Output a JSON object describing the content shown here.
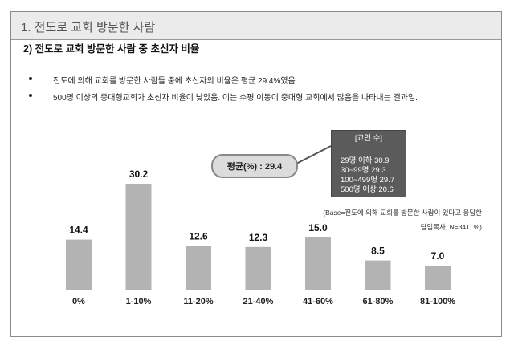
{
  "header": {
    "title": "1. 전도로 교회 방문한 사람"
  },
  "section": {
    "title": "2) 전도로 교회 방문한 사람 중 초신자 비율"
  },
  "bullets": [
    "전도에 의해 교회를 방문한 사람들 중에 초신자의 비율은 평균 29.4%였음.",
    "500명 이상의 중대형교회가 초신자 비율이 낮았음. 이는 수평 이동이 중대형 교회에서 많음을 나타내는 결과임."
  ],
  "average_label": "평균(%) : 29.4",
  "church_size_box": {
    "title": "[교인 수]",
    "items": [
      "29명 이하 30.9",
      "30~99명 29.3",
      "100~499명 29.7",
      "500명 이상 20.6"
    ]
  },
  "base_note": {
    "line1": "(Base=전도에 의해 교회를 방문한 사람이 있다고 응답한",
    "line2": "담임목사, N=341, %)"
  },
  "colors": {
    "bar": "#b3b3b3",
    "header_bg": "#ebebeb",
    "box_bg": "#5b5b5b"
  },
  "chart_data": {
    "type": "bar",
    "categories": [
      "0%",
      "1-10%",
      "11-20%",
      "21-40%",
      "41-60%",
      "61-80%",
      "81-100%"
    ],
    "values": [
      14.4,
      30.2,
      12.6,
      12.3,
      15.0,
      8.5,
      7.0
    ],
    "value_labels": [
      "14.4",
      "30.2",
      "12.6",
      "12.3",
      "15.0",
      "8.5",
      "7.0"
    ],
    "title": "",
    "xlabel": "",
    "ylabel": "",
    "ylim": [
      0,
      30.2
    ],
    "grid": false,
    "legend": "none"
  }
}
